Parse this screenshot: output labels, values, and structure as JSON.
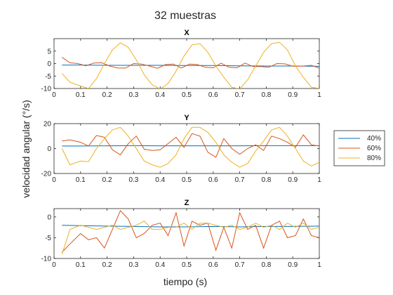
{
  "figure": {
    "suptitle": "32 muestras",
    "xlabel": "tiempo (s)",
    "ylabel": "velocidad angular (°/s)"
  },
  "legend": {
    "placement": "right",
    "entries": [
      "40%",
      "60%",
      "80%"
    ]
  },
  "colors": {
    "40%": "#0072BD",
    "60%": "#D95319",
    "80%": "#EDB120",
    "axes": "#262626"
  },
  "chart_data": [
    {
      "type": "line",
      "title": "X",
      "xlim": [
        0,
        1
      ],
      "ylim": [
        -10,
        10
      ],
      "xticks": [
        0,
        0.1,
        0.2,
        0.3,
        0.4,
        0.5,
        0.6,
        0.7,
        0.8,
        0.9,
        1
      ],
      "xticklabels": [
        "0",
        "0.1",
        "0.2",
        "0.3",
        "0.4",
        "0.5",
        "0.6",
        "0.7",
        "0.8",
        "0.9",
        "1"
      ],
      "yticks": [
        -10,
        -5,
        0,
        5
      ],
      "yticklabels": [
        "-10",
        "-5",
        "0",
        "5"
      ],
      "series": [
        {
          "name": "40%",
          "x": [
            0.03,
            0.1,
            0.2,
            0.3,
            0.4,
            0.5,
            0.6,
            0.7,
            0.8,
            0.9,
            1.0
          ],
          "y": [
            -0.6,
            -0.6,
            -0.7,
            -0.7,
            -0.7,
            -0.8,
            -0.8,
            -0.9,
            -1.0,
            -1.0,
            -1.1
          ]
        },
        {
          "name": "60%",
          "x": [
            0.03,
            0.06,
            0.09,
            0.12,
            0.15,
            0.18,
            0.21,
            0.24,
            0.27,
            0.3,
            0.33,
            0.36,
            0.39,
            0.42,
            0.45,
            0.48,
            0.51,
            0.54,
            0.57,
            0.6,
            0.63,
            0.66,
            0.69,
            0.72,
            0.75,
            0.78,
            0.81,
            0.84,
            0.87,
            0.9,
            0.94,
            0.97,
            1.0
          ],
          "y": [
            2.5,
            0.3,
            0.0,
            -0.9,
            0.2,
            0.3,
            -1.0,
            -1.8,
            -1.8,
            0.0,
            -0.2,
            -1.0,
            -1.9,
            -0.4,
            -0.2,
            -1.8,
            -0.2,
            -0.4,
            -1.5,
            -1.7,
            0.1,
            -1.5,
            -1.7,
            0.2,
            -1.2,
            -1.2,
            -1.5,
            0.0,
            -0.1,
            -1.1,
            -1.0,
            -0.7,
            -1.8
          ]
        },
        {
          "name": "80%",
          "x": [
            0.03,
            0.06,
            0.1,
            0.13,
            0.16,
            0.19,
            0.22,
            0.25,
            0.28,
            0.31,
            0.34,
            0.37,
            0.4,
            0.43,
            0.46,
            0.49,
            0.52,
            0.55,
            0.58,
            0.61,
            0.64,
            0.67,
            0.7,
            0.73,
            0.76,
            0.79,
            0.82,
            0.85,
            0.88,
            0.91,
            0.94,
            0.97,
            1.0
          ],
          "y": [
            -4.0,
            -7.5,
            -9.0,
            -10.0,
            -6.0,
            0.0,
            5.5,
            8.3,
            6.5,
            1.5,
            -4.5,
            -8.5,
            -10.2,
            -8.0,
            -3.0,
            3.0,
            7.5,
            8.0,
            4.5,
            -1.0,
            -5.5,
            -9.5,
            -10.2,
            -6.5,
            -1.0,
            4.5,
            8.0,
            8.5,
            5.5,
            -1.0,
            -5.5,
            -9.5,
            -10.0
          ]
        }
      ]
    },
    {
      "type": "line",
      "title": "Y",
      "xlim": [
        0,
        1
      ],
      "ylim": [
        -20,
        20
      ],
      "xticks": [
        0,
        0.1,
        0.2,
        0.3,
        0.4,
        0.5,
        0.6,
        0.7,
        0.8,
        0.9,
        1
      ],
      "xticklabels": [
        "0",
        "0.1",
        "0.2",
        "0.3",
        "0.4",
        "0.5",
        "0.6",
        "0.7",
        "0.8",
        "0.9",
        "1"
      ],
      "yticks": [
        -20,
        0,
        20
      ],
      "yticklabels": [
        "-20",
        "0",
        "20"
      ],
      "series": [
        {
          "name": "40%",
          "x": [
            0.03,
            0.1,
            0.2,
            0.3,
            0.4,
            0.5,
            0.6,
            0.7,
            0.8,
            0.9,
            1.0
          ],
          "y": [
            2.0,
            2.0,
            2.2,
            2.3,
            2.2,
            2.2,
            2.2,
            2.2,
            2.3,
            2.3,
            2.3
          ]
        },
        {
          "name": "60%",
          "x": [
            0.03,
            0.06,
            0.1,
            0.13,
            0.16,
            0.19,
            0.22,
            0.25,
            0.28,
            0.31,
            0.34,
            0.37,
            0.4,
            0.43,
            0.46,
            0.49,
            0.52,
            0.55,
            0.58,
            0.61,
            0.64,
            0.67,
            0.7,
            0.73,
            0.76,
            0.79,
            0.82,
            0.85,
            0.88,
            0.91,
            0.94,
            0.97,
            1.0
          ],
          "y": [
            6.0,
            7.0,
            5.0,
            2.0,
            10.5,
            9.0,
            -1.0,
            -5.0,
            4.0,
            10.0,
            -0.5,
            -1.5,
            -1.0,
            4.0,
            9.0,
            1.0,
            12.0,
            10.0,
            -3.0,
            -7.0,
            8.0,
            0.0,
            -4.5,
            0.0,
            3.0,
            -1.5,
            10.0,
            8.0,
            5.0,
            1.0,
            11.0,
            3.0,
            2.0
          ]
        },
        {
          "name": "80%",
          "x": [
            0.03,
            0.06,
            0.1,
            0.13,
            0.16,
            0.19,
            0.22,
            0.25,
            0.28,
            0.31,
            0.34,
            0.37,
            0.4,
            0.43,
            0.46,
            0.49,
            0.52,
            0.55,
            0.58,
            0.61,
            0.64,
            0.67,
            0.7,
            0.73,
            0.76,
            0.79,
            0.82,
            0.85,
            0.88,
            0.91,
            0.94,
            0.97,
            1.0
          ],
          "y": [
            0.0,
            -13.0,
            -10.0,
            -10.5,
            0.0,
            8.0,
            15.0,
            17.0,
            10.0,
            0.0,
            -10.0,
            -13.0,
            -15.0,
            -12.0,
            -5.0,
            8.0,
            17.0,
            17.0,
            13.0,
            5.0,
            -5.0,
            -11.0,
            -15.0,
            -12.0,
            -2.0,
            6.0,
            15.0,
            17.0,
            10.0,
            0.0,
            -10.0,
            -14.0,
            -11.0
          ]
        }
      ]
    },
    {
      "type": "line",
      "title": "Z",
      "xlim": [
        0,
        1
      ],
      "ylim": [
        -10,
        2
      ],
      "xticks": [
        0,
        0.1,
        0.2,
        0.3,
        0.4,
        0.5,
        0.6,
        0.7,
        0.8,
        0.9,
        1
      ],
      "xticklabels": [
        "0",
        "0.1",
        "0.2",
        "0.3",
        "0.4",
        "0.5",
        "0.6",
        "0.7",
        "0.8",
        "0.9",
        "1"
      ],
      "yticks": [
        -10,
        -5,
        0
      ],
      "yticklabels": [
        "-10",
        "-5",
        "0"
      ],
      "series": [
        {
          "name": "40%",
          "x": [
            0.03,
            0.1,
            0.2,
            0.3,
            0.4,
            0.5,
            0.6,
            0.7,
            0.8,
            0.9,
            1.0
          ],
          "y": [
            -2.0,
            -2.1,
            -2.2,
            -2.3,
            -2.4,
            -2.4,
            -2.3,
            -2.4,
            -2.3,
            -2.3,
            -2.2
          ]
        },
        {
          "name": "60%",
          "x": [
            0.03,
            0.06,
            0.1,
            0.13,
            0.16,
            0.19,
            0.22,
            0.25,
            0.28,
            0.31,
            0.34,
            0.37,
            0.4,
            0.43,
            0.46,
            0.49,
            0.52,
            0.55,
            0.58,
            0.61,
            0.64,
            0.67,
            0.7,
            0.73,
            0.76,
            0.79,
            0.82,
            0.85,
            0.88,
            0.91,
            0.94,
            0.97,
            1.0
          ],
          "y": [
            -8.5,
            -6.5,
            -4.0,
            -5.5,
            -5.0,
            -7.5,
            -3.0,
            1.5,
            -0.5,
            -5.0,
            -4.0,
            -2.0,
            -1.5,
            -4.5,
            1.0,
            -7.0,
            -1.0,
            -2.0,
            -1.5,
            -8.0,
            -2.5,
            -7.5,
            1.0,
            -3.0,
            -2.0,
            -7.5,
            -2.0,
            -1.0,
            -5.0,
            -4.5,
            -0.5,
            -4.5,
            -5.0
          ]
        },
        {
          "name": "80%",
          "x": [
            0.03,
            0.06,
            0.1,
            0.13,
            0.16,
            0.19,
            0.22,
            0.25,
            0.28,
            0.31,
            0.34,
            0.37,
            0.4,
            0.43,
            0.46,
            0.49,
            0.52,
            0.55,
            0.58,
            0.61,
            0.64,
            0.67,
            0.7,
            0.73,
            0.76,
            0.79,
            0.82,
            0.85,
            0.88,
            0.91,
            0.94,
            0.97,
            1.0
          ],
          "y": [
            -9.0,
            -3.0,
            -2.0,
            -2.5,
            -3.0,
            -2.5,
            -2.0,
            -3.0,
            -2.5,
            -2.0,
            -1.0,
            -3.0,
            -3.0,
            -2.5,
            -2.5,
            -1.5,
            -3.0,
            -1.5,
            -1.5,
            -2.0,
            -2.5,
            -2.0,
            -3.0,
            -2.5,
            -1.5,
            -2.5,
            -2.0,
            -3.0,
            -1.5,
            -2.5,
            -1.5,
            -3.0,
            -2.5
          ]
        }
      ]
    }
  ]
}
